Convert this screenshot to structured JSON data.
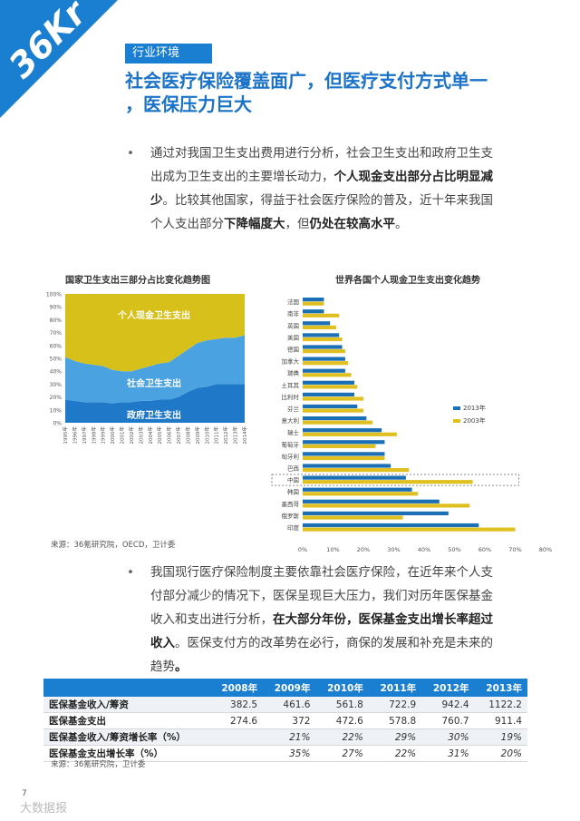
{
  "logo_text": "36Kr",
  "section_tag": "行业环境",
  "headline_line1": "社会医疗保险覆盖面广，但医疗支付方式单一",
  "headline_line2": "，医保压力巨大",
  "bullet": "•",
  "para1": {
    "t1": "通过对我国卫生支出费用进行分析，社会卫生支出和政府卫生支",
    "t2": "出成为卫生支出的主要增长动力，",
    "b1": "个人现金支出部分占比明显减",
    "b2": "少",
    "t3": "。比较其他国家，得益于社会医疗保险的普及，近十年来我国",
    "t4": "个人支出部分",
    "b3": "下降幅度大",
    "t5": "，但",
    "b4": "仍处在较高水平",
    "t6": "。"
  },
  "para2": {
    "t1": "我国现行医疗保险制度主要依靠社会医疗保险，在近年来个人支",
    "t2": "付部分减少的情况下，医保呈现巨大压力，我们对历年医保基金",
    "t3": "收入和支出进行分析，",
    "b1": "在大部分年份，医保基金支出增长率超过",
    "b2": "收入",
    "t4": "。医保支付方的改革势在必行，商保的发展和补充是未来的",
    "t5": "趋势",
    "t6": "。"
  },
  "colors": {
    "accent": "#1a7fd0",
    "headline": "#1a73c8",
    "gov": "#1f78c8",
    "social": "#4aa3e0",
    "personal": "#d8c01a",
    "bar2013": "#1a6fb5",
    "bar2003": "#e0c020"
  },
  "chart_data": [
    {
      "type": "area",
      "title": "国家卫生支出三部分占比变化趋势图",
      "x": [
        "1995年",
        "1996年",
        "1997年",
        "1998年",
        "1999年",
        "2000年",
        "2001年",
        "2002年",
        "2003年",
        "2004年",
        "2005年",
        "2006年",
        "2007年",
        "2008年",
        "2009年",
        "2010年",
        "2011年",
        "2012年",
        "2013年",
        "2014年"
      ],
      "yticks": [
        "0%",
        "10%",
        "20%",
        "30%",
        "40%",
        "50%",
        "60%",
        "70%",
        "80%",
        "90%",
        "100%"
      ],
      "ylim": [
        0,
        100
      ],
      "series": [
        {
          "name": "政府卫生支出",
          "values": [
            18,
            17,
            16,
            16,
            16,
            15,
            16,
            16,
            17,
            17,
            18,
            18,
            20,
            24,
            27,
            28,
            30,
            30,
            30,
            30
          ]
        },
        {
          "name": "社会卫生支出",
          "values": [
            33,
            31,
            30,
            29,
            28,
            26,
            24,
            24,
            25,
            27,
            28,
            29,
            32,
            33,
            35,
            36,
            35,
            36,
            36,
            38
          ]
        },
        {
          "name": "个人现金卫生支出",
          "values": [
            49,
            52,
            54,
            55,
            56,
            59,
            60,
            60,
            58,
            56,
            54,
            53,
            48,
            43,
            38,
            36,
            35,
            34,
            34,
            32
          ]
        }
      ]
    },
    {
      "type": "bar",
      "orientation": "horizontal",
      "title": "世界各国个人现金卫生支出变化趋势",
      "categories": [
        "法国",
        "南非",
        "英国",
        "美国",
        "德国",
        "加拿大",
        "瑞典",
        "土耳其",
        "比利时",
        "芬兰",
        "意大利",
        "瑞士",
        "葡萄牙",
        "匈牙利",
        "巴西",
        "中国",
        "韩国",
        "墨西哥",
        "俄罗斯",
        "印度"
      ],
      "xticks": [
        "0%",
        "10%",
        "20%",
        "30%",
        "40%",
        "50%",
        "60%",
        "70%",
        "80%"
      ],
      "xlim": [
        0,
        80
      ],
      "highlight": "中国",
      "series": [
        {
          "name": "2013年",
          "values": [
            7,
            7,
            9,
            12,
            13,
            14,
            14,
            17,
            17,
            18,
            21,
            26,
            27,
            27,
            29,
            34,
            36,
            45,
            48,
            58
          ]
        },
        {
          "name": "2003年",
          "values": [
            7,
            12,
            11,
            13,
            14,
            15,
            16,
            18,
            20,
            20,
            23,
            31,
            24,
            27,
            35,
            56,
            38,
            55,
            33,
            70
          ]
        }
      ]
    }
  ],
  "source1": "来源：36氪研究院，OECD，卫计委",
  "table": {
    "headers": [
      "",
      "2008年",
      "2009年",
      "2010年",
      "2011年",
      "2012年",
      "2013年"
    ],
    "rows": [
      {
        "label": "医保基金收入/筹资",
        "values": [
          "382.5",
          "461.6",
          "561.8",
          "722.9",
          "942.4",
          "1122.2"
        ],
        "italic": false
      },
      {
        "label": "医保基金支出",
        "values": [
          "274.6",
          "372",
          "472.6",
          "578.8",
          "760.7",
          "911.4"
        ],
        "italic": false
      },
      {
        "label": "医保基金收入/筹资增长率（%）",
        "values": [
          "",
          "21%",
          "22%",
          "29%",
          "30%",
          "19%"
        ],
        "italic": true
      },
      {
        "label": "医保基金支出增长率（%）",
        "values": [
          "",
          "35%",
          "27%",
          "22%",
          "31%",
          "20%"
        ],
        "italic": true
      }
    ]
  },
  "source2": "来源：36氪研究院，卫计委",
  "page_number": "7",
  "watermark": "大数据报"
}
